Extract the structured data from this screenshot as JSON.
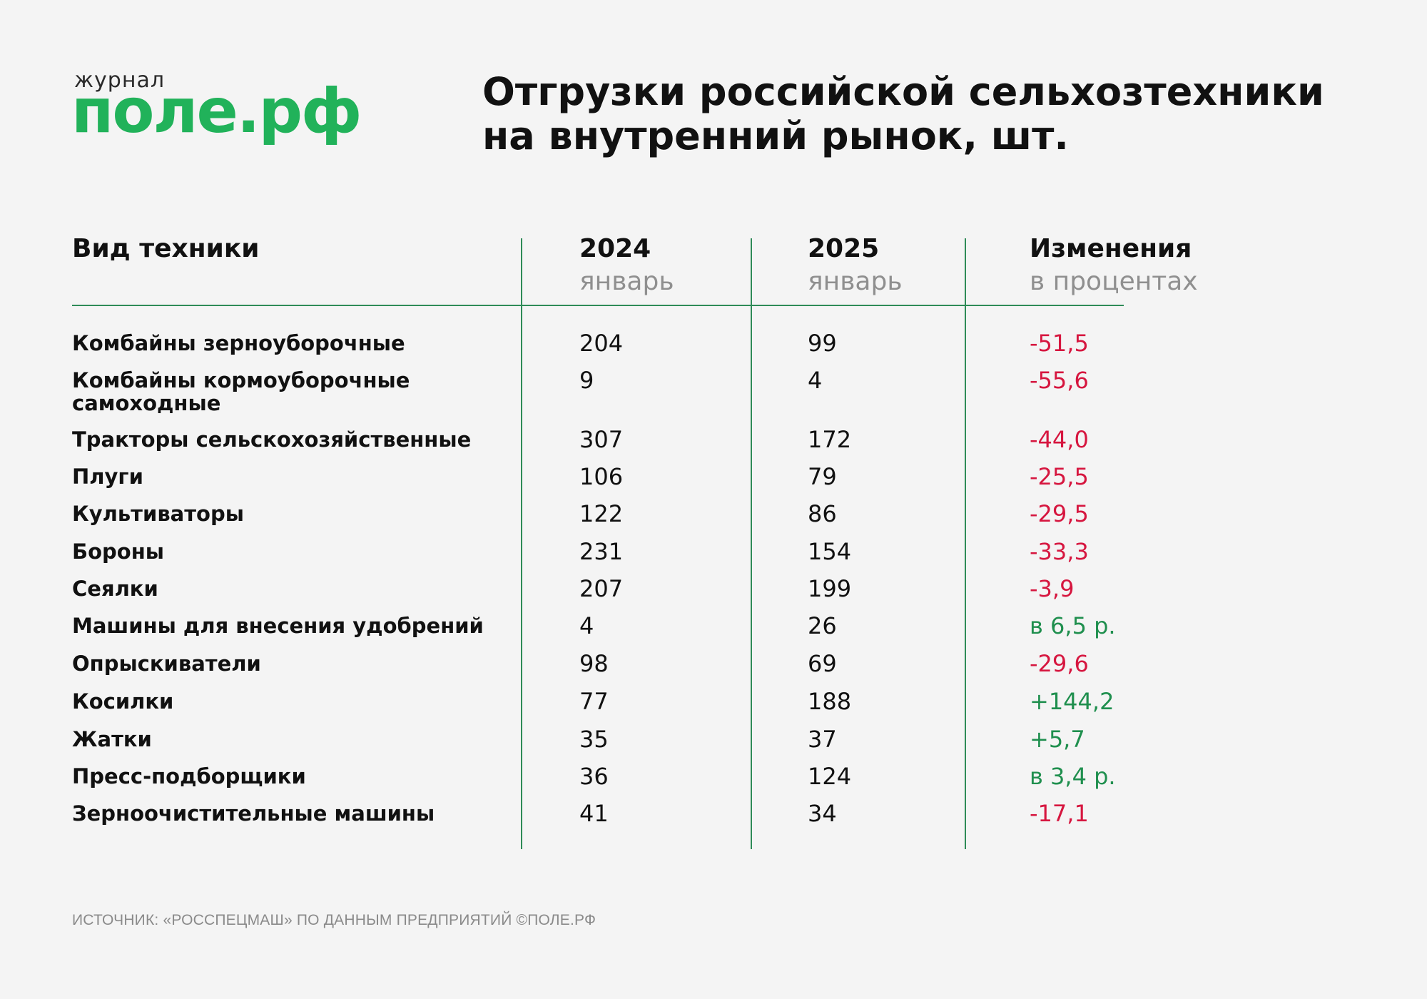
{
  "logo": {
    "small": "журнал",
    "big": "поле.рф",
    "color": "#21b25a"
  },
  "chart_data": {
    "type": "table",
    "title_line1": "Отгрузки российской сельхозтехники",
    "title_line2": "на внутренний рынок, шт.",
    "headers": {
      "col1": "Вид техники",
      "col2": "2024",
      "col2_sub": "январь",
      "col3": "2025",
      "col3_sub": "январь",
      "col4": "Изменения",
      "col4_sub": "в процентах"
    },
    "rows": [
      {
        "name": "Комбайны зерноуборочные",
        "y2024": "204",
        "y2025": "99",
        "change": "-51,5",
        "trend": "neg"
      },
      {
        "name": "Комбайны кормоуборочные самоходные",
        "y2024": "9",
        "y2025": "4",
        "change": "-55,6",
        "trend": "neg"
      },
      {
        "name": "Тракторы сельскохозяйственные",
        "y2024": "307",
        "y2025": "172",
        "change": "-44,0",
        "trend": "neg"
      },
      {
        "name": "Плуги",
        "y2024": "106",
        "y2025": "79",
        "change": "-25,5",
        "trend": "neg"
      },
      {
        "name": "Культиваторы",
        "y2024": "122",
        "y2025": "86",
        "change": "-29,5",
        "trend": "neg"
      },
      {
        "name": "Бороны",
        "y2024": "231",
        "y2025": "154",
        "change": "-33,3",
        "trend": "neg"
      },
      {
        "name": "Сеялки",
        "y2024": "207",
        "y2025": "199",
        "change": "-3,9",
        "trend": "neg"
      },
      {
        "name": "Машины для внесения удобрений",
        "y2024": "4",
        "y2025": "26",
        "change": "в 6,5 р.",
        "trend": "pos"
      },
      {
        "name": "Опрыскиватели",
        "y2024": "98",
        "y2025": "69",
        "change": "-29,6",
        "trend": "neg"
      },
      {
        "name": "Косилки",
        "y2024": "77",
        "y2025": "188",
        "change": "+144,2",
        "trend": "pos"
      },
      {
        "name": "Жатки",
        "y2024": "35",
        "y2025": "37",
        "change": "+5,7",
        "trend": "pos"
      },
      {
        "name": "Пресс-подборщики",
        "y2024": "36",
        "y2025": "124",
        "change": "в 3,4 р.",
        "trend": "pos"
      },
      {
        "name": "Зерноочистительные машины",
        "y2024": "41",
        "y2025": "34",
        "change": "-17,1",
        "trend": "neg"
      }
    ]
  },
  "source": "ИСТОЧНИК: «РОССПЕЦМАШ» ПО ДАННЫМ ПРЕДПРИЯТИЙ ©ПОЛЕ.РФ",
  "colors": {
    "negative": "#d6163f",
    "positive": "#1f8f4e",
    "rule": "#2e8b57"
  }
}
